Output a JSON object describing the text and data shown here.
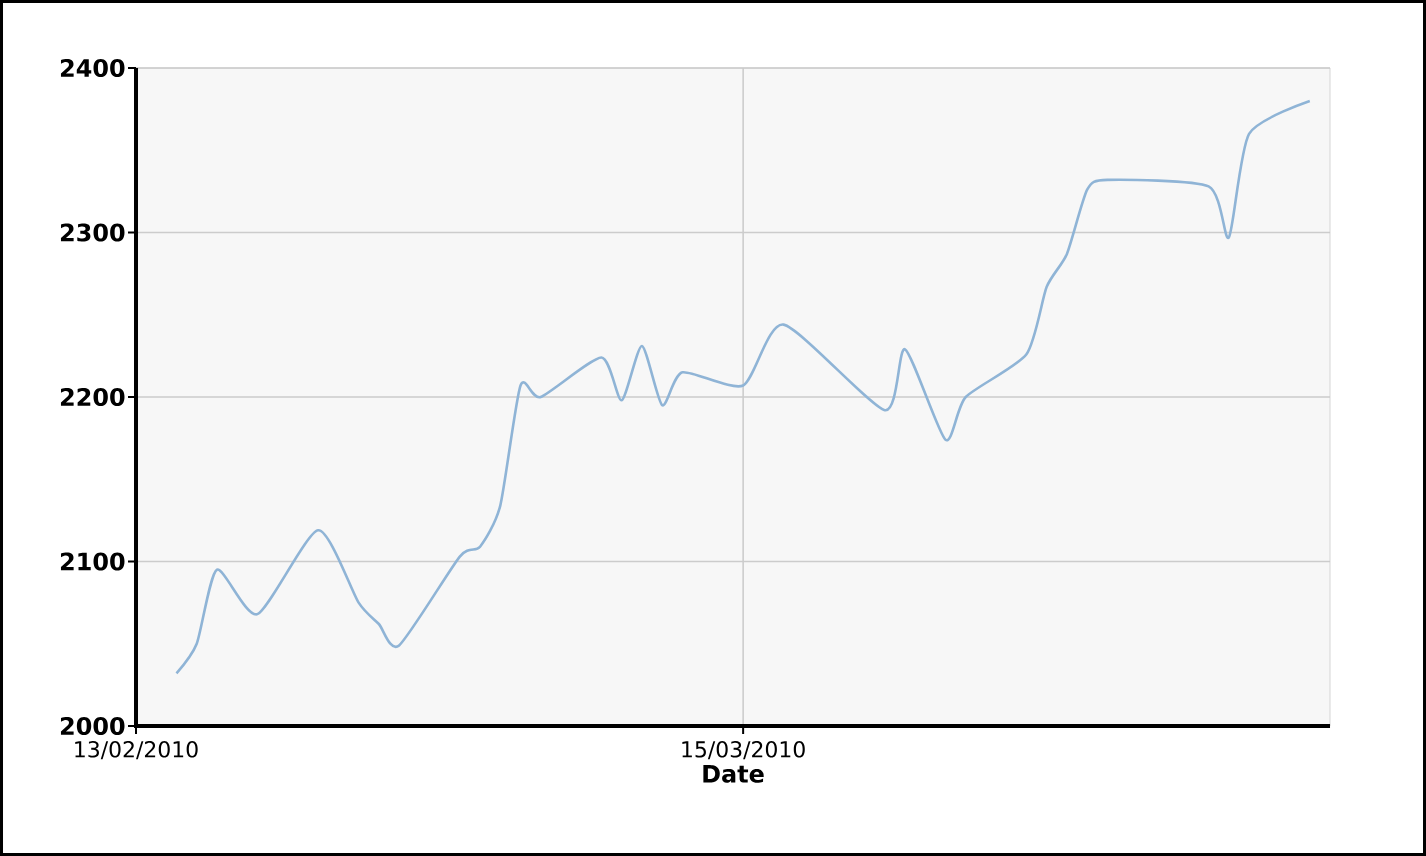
{
  "chart_data": {
    "type": "line",
    "xlabel": "Date",
    "x": [
      "2010-02-15",
      "2010-02-16",
      "2010-02-17",
      "2010-02-19",
      "2010-02-22",
      "2010-02-24",
      "2010-02-25",
      "2010-02-26",
      "2010-03-01",
      "2010-03-02",
      "2010-03-03",
      "2010-03-04",
      "2010-03-05",
      "2010-03-08",
      "2010-03-09",
      "2010-03-10",
      "2010-03-11",
      "2010-03-12",
      "2010-03-15",
      "2010-03-17",
      "2010-03-22",
      "2010-03-23",
      "2010-03-25",
      "2010-03-26",
      "2010-03-29",
      "2010-03-30",
      "2010-03-31",
      "2010-04-01",
      "2010-04-02",
      "2010-04-07",
      "2010-04-08",
      "2010-04-09",
      "2010-04-12"
    ],
    "values": [
      2032,
      2050,
      2095,
      2068,
      2119,
      2075,
      2062,
      2049,
      2103,
      2109,
      2134,
      2207,
      2200,
      2224,
      2198,
      2231,
      2195,
      2215,
      2207,
      2244,
      2192,
      2229,
      2174,
      2200,
      2226,
      2267,
      2287,
      2326,
      2332,
      2328,
      2297,
      2360,
      2380
    ],
    "color": "#8fb4d6",
    "xlim": [
      "2010-02-13",
      "2010-04-13"
    ],
    "xticks": [
      {
        "value": "2010-02-13",
        "label": "13/02/2010"
      },
      {
        "value": "2010-03-15",
        "label": "15/03/2010"
      }
    ],
    "ylim": [
      2000,
      2400
    ],
    "yticks": [
      2000,
      2100,
      2200,
      2300,
      2400
    ],
    "grid": true,
    "marker": "none",
    "line_style": "solid"
  }
}
